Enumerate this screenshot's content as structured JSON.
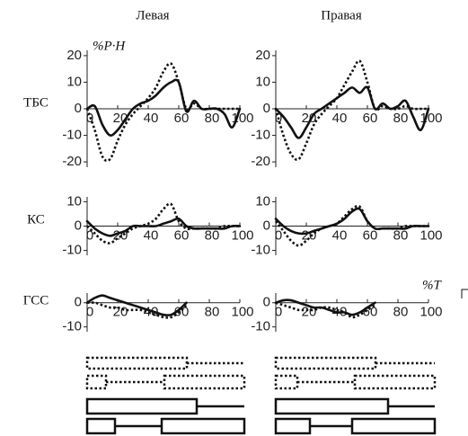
{
  "columns": [
    "Левая",
    "Правая"
  ],
  "rows": [
    "ТБС",
    "КС",
    "ГСС"
  ],
  "y_unit": "%P·H",
  "x_unit": "%T",
  "chart_data": [
    {
      "type": "line",
      "x": [
        0,
        5,
        10,
        15,
        20,
        25,
        30,
        35,
        40,
        45,
        50,
        55,
        60,
        65,
        70,
        75,
        80,
        85,
        90,
        95,
        100
      ],
      "xlim": [
        0,
        100
      ],
      "xticks": [
        0,
        20,
        40,
        60,
        80,
        100
      ],
      "ylim": [
        -22,
        22
      ],
      "yticks": [
        -20,
        -10,
        0,
        10,
        20
      ],
      "series": [
        {
          "color": "#111",
          "style": "solid",
          "values": [
            0,
            1,
            -6,
            -10,
            -8,
            -4,
            0,
            2,
            3,
            5,
            8,
            10,
            10,
            -1,
            3,
            0,
            0,
            0,
            -2,
            -7,
            0
          ]
        },
        {
          "color": "#111",
          "style": "dotted",
          "values": [
            0,
            -8,
            -18,
            -19,
            -12,
            -6,
            -2,
            1,
            4,
            8,
            14,
            17,
            10,
            0,
            2,
            0,
            0,
            0,
            0,
            0,
            0
          ]
        }
      ]
    },
    {
      "type": "line",
      "x": [
        0,
        5,
        10,
        15,
        20,
        25,
        30,
        35,
        40,
        45,
        50,
        55,
        60,
        65,
        70,
        75,
        80,
        85,
        90,
        95,
        100
      ],
      "xlim": [
        0,
        100
      ],
      "xticks": [
        0,
        20,
        40,
        60,
        80,
        100
      ],
      "ylim": [
        -22,
        22
      ],
      "yticks": [
        -20,
        -10,
        0,
        10,
        20
      ],
      "series": [
        {
          "color": "#111",
          "style": "solid",
          "values": [
            0,
            -3,
            -7,
            -11,
            -7,
            -2,
            0,
            2,
            4,
            6,
            8,
            6,
            8,
            0,
            2,
            0,
            1,
            3,
            -3,
            -8,
            0
          ]
        },
        {
          "color": "#111",
          "style": "dotted",
          "values": [
            0,
            -10,
            -17,
            -19,
            -13,
            -6,
            -2,
            1,
            4,
            9,
            14,
            18,
            10,
            0,
            1,
            0,
            0,
            1,
            0,
            0,
            0
          ]
        }
      ]
    },
    {
      "type": "line",
      "x": [
        0,
        5,
        10,
        15,
        20,
        25,
        30,
        35,
        40,
        45,
        50,
        55,
        60,
        65,
        70,
        75,
        80,
        85,
        90,
        95,
        100
      ],
      "xlim": [
        0,
        100
      ],
      "xticks": [
        0,
        20,
        40,
        60,
        80,
        100
      ],
      "ylim": [
        -12,
        12
      ],
      "yticks": [
        -10,
        0,
        10
      ],
      "series": [
        {
          "color": "#111",
          "style": "solid",
          "values": [
            2,
            -1,
            -3,
            -4,
            -3,
            -2,
            0,
            0,
            0,
            0,
            1,
            2,
            3,
            0,
            -1,
            -1,
            -1,
            -1,
            -1,
            0,
            0
          ]
        },
        {
          "color": "#111",
          "style": "dotted",
          "values": [
            0,
            -3,
            -6,
            -7,
            -5,
            -3,
            -1,
            0,
            1,
            3,
            7,
            9,
            2,
            -1,
            -1,
            -1,
            -1,
            -1,
            0,
            0,
            0
          ]
        }
      ]
    },
    {
      "type": "line",
      "x": [
        0,
        5,
        10,
        15,
        20,
        25,
        30,
        35,
        40,
        45,
        50,
        55,
        60,
        65,
        70,
        75,
        80,
        85,
        90,
        95,
        100
      ],
      "xlim": [
        0,
        100
      ],
      "xticks": [
        0,
        20,
        40,
        60,
        80,
        100
      ],
      "ylim": [
        -12,
        12
      ],
      "yticks": [
        -10,
        0,
        10
      ],
      "series": [
        {
          "color": "#111",
          "style": "solid",
          "values": [
            3,
            0,
            -2,
            -3,
            -3,
            -2,
            -1,
            0,
            1,
            3,
            6,
            7,
            2,
            -1,
            -1,
            -1,
            -1,
            -1,
            0,
            0,
            0
          ]
        },
        {
          "color": "#111",
          "style": "dotted",
          "values": [
            2,
            -2,
            -6,
            -8,
            -6,
            -3,
            -1,
            0,
            1,
            4,
            7,
            8,
            2,
            -1,
            -1,
            -1,
            -1,
            0,
            0,
            0,
            0
          ]
        }
      ]
    },
    {
      "type": "line",
      "x": [
        0,
        5,
        10,
        15,
        20,
        25,
        30,
        35,
        40,
        45,
        50,
        55,
        60,
        65,
        70,
        75,
        80,
        85,
        90,
        95,
        100
      ],
      "xlim": [
        0,
        100
      ],
      "xticks": [
        0,
        20,
        40,
        60,
        80,
        100
      ],
      "ylim": [
        -12,
        4
      ],
      "yticks": [
        -10,
        0
      ],
      "series": [
        {
          "color": "#111",
          "style": "solid",
          "values": [
            0,
            2,
            3,
            2,
            1,
            0,
            -1,
            -2,
            -3,
            -4,
            -5,
            -5,
            -3,
            0,
            null,
            null,
            null,
            null,
            null,
            null,
            null
          ]
        },
        {
          "color": "#111",
          "style": "dotted",
          "values": [
            0,
            0,
            -1,
            -2,
            -2,
            -3,
            -3,
            -3,
            -4,
            -5,
            -6,
            -6,
            -4,
            -1,
            null,
            null,
            null,
            null,
            null,
            null,
            null
          ]
        }
      ]
    },
    {
      "type": "line",
      "x": [
        0,
        5,
        10,
        15,
        20,
        25,
        30,
        35,
        40,
        45,
        50,
        55,
        60,
        65,
        70,
        75,
        80,
        85,
        90,
        95,
        100
      ],
      "xlim": [
        0,
        100
      ],
      "xticks": [
        0,
        20,
        40,
        60,
        80,
        100
      ],
      "ylim": [
        -12,
        4
      ],
      "yticks": [
        -10,
        0
      ],
      "series": [
        {
          "color": "#111",
          "style": "solid",
          "values": [
            0,
            1,
            1,
            0,
            -1,
            -2,
            -2,
            -3,
            -4,
            -4,
            -5,
            -4,
            -2,
            0,
            null,
            null,
            null,
            null,
            null,
            null,
            null
          ]
        },
        {
          "color": "#111",
          "style": "dotted",
          "values": [
            0,
            -1,
            -2,
            -3,
            -3,
            -3,
            -2,
            -2,
            -3,
            -4,
            -6,
            -5,
            -3,
            -1,
            null,
            null,
            null,
            null,
            null,
            null,
            null
          ]
        }
      ]
    }
  ]
}
